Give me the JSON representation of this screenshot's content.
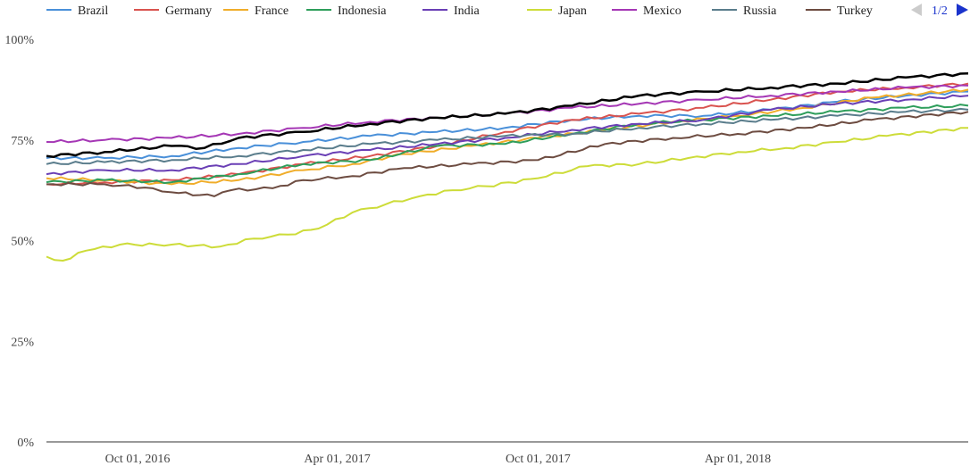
{
  "chart_data": {
    "type": "line",
    "title": "",
    "xlabel": "",
    "ylabel": "",
    "ylim": [
      0,
      100
    ],
    "y_ticks": [
      "0%",
      "25%",
      "50%",
      "75%",
      "100%"
    ],
    "x_ticks": [
      {
        "label": "Oct 01, 2016",
        "date": "2016-10-01"
      },
      {
        "label": "Apr 01, 2017",
        "date": "2017-04-01"
      },
      {
        "label": "Oct 01, 2017",
        "date": "2017-10-01"
      },
      {
        "label": "Apr 01, 2018",
        "date": "2018-04-01"
      }
    ],
    "x_range": [
      "2016-07-10",
      "2018-10-28"
    ],
    "grid": "none",
    "legend_position": "top",
    "pager": {
      "label": "1/2"
    },
    "series": [
      {
        "name": "Brazil",
        "color": "#4a90d9",
        "points": [
          [
            "2016-07-10",
            70.5
          ],
          [
            "2016-09-01",
            70.5
          ],
          [
            "2016-11-01",
            71
          ],
          [
            "2017-01-01",
            73
          ],
          [
            "2017-03-01",
            74.5
          ],
          [
            "2017-05-01",
            76
          ],
          [
            "2017-07-01",
            77
          ],
          [
            "2017-09-01",
            78
          ],
          [
            "2017-11-01",
            80
          ],
          [
            "2018-01-01",
            81
          ],
          [
            "2018-03-01",
            81
          ],
          [
            "2018-05-01",
            82.5
          ],
          [
            "2018-07-01",
            84.5
          ],
          [
            "2018-09-01",
            86
          ],
          [
            "2018-10-28",
            87
          ]
        ]
      },
      {
        "name": "Germany",
        "color": "#d9534f",
        "points": [
          [
            "2016-07-10",
            64
          ],
          [
            "2016-09-01",
            64.5
          ],
          [
            "2016-11-01",
            65
          ],
          [
            "2017-01-01",
            66.5
          ],
          [
            "2017-03-01",
            69
          ],
          [
            "2017-05-01",
            71
          ],
          [
            "2017-07-01",
            73.5
          ],
          [
            "2017-09-01",
            77
          ],
          [
            "2017-11-01",
            80
          ],
          [
            "2018-01-01",
            81.5
          ],
          [
            "2018-03-01",
            83
          ],
          [
            "2018-05-01",
            85
          ],
          [
            "2018-07-01",
            87
          ],
          [
            "2018-09-01",
            88
          ],
          [
            "2018-10-28",
            89
          ]
        ]
      },
      {
        "name": "France",
        "color": "#f0ad2a",
        "points": [
          [
            "2016-07-10",
            65.5
          ],
          [
            "2016-09-01",
            65
          ],
          [
            "2016-11-01",
            64
          ],
          [
            "2017-01-01",
            65
          ],
          [
            "2017-03-01",
            67.5
          ],
          [
            "2017-04-15",
            69
          ],
          [
            "2017-06-01",
            71.5
          ],
          [
            "2017-08-01",
            73.5
          ],
          [
            "2017-10-01",
            75.5
          ],
          [
            "2017-12-01",
            77.5
          ],
          [
            "2018-02-01",
            79.5
          ],
          [
            "2018-04-01",
            81
          ],
          [
            "2018-06-01",
            83
          ],
          [
            "2018-08-01",
            85.5
          ],
          [
            "2018-10-28",
            87.5
          ]
        ]
      },
      {
        "name": "Indonesia",
        "color": "#2e9e5b",
        "points": [
          [
            "2016-07-10",
            64.5
          ],
          [
            "2016-09-01",
            65
          ],
          [
            "2016-11-01",
            64.5
          ],
          [
            "2017-01-01",
            66.5
          ],
          [
            "2017-03-01",
            69
          ],
          [
            "2017-05-01",
            70
          ],
          [
            "2017-07-01",
            73.5
          ],
          [
            "2017-09-01",
            74
          ],
          [
            "2017-11-01",
            76.5
          ],
          [
            "2018-01-01",
            79
          ],
          [
            "2018-03-01",
            80
          ],
          [
            "2018-05-01",
            81
          ],
          [
            "2018-07-01",
            82
          ],
          [
            "2018-09-01",
            83
          ],
          [
            "2018-10-28",
            83.5
          ]
        ]
      },
      {
        "name": "India",
        "color": "#6a3fb5",
        "points": [
          [
            "2016-07-10",
            66.5
          ],
          [
            "2016-09-01",
            67.5
          ],
          [
            "2016-11-01",
            67.5
          ],
          [
            "2017-01-01",
            69
          ],
          [
            "2017-03-01",
            71
          ],
          [
            "2017-05-01",
            72.5
          ],
          [
            "2017-07-01",
            74
          ],
          [
            "2017-09-01",
            75.5
          ],
          [
            "2017-11-01",
            77.5
          ],
          [
            "2018-01-01",
            79
          ],
          [
            "2018-03-01",
            80
          ],
          [
            "2018-05-01",
            82.5
          ],
          [
            "2018-07-01",
            84
          ],
          [
            "2018-09-01",
            85
          ],
          [
            "2018-10-28",
            86
          ]
        ]
      },
      {
        "name": "Japan",
        "color": "#cddc39",
        "points": [
          [
            "2016-07-10",
            46
          ],
          [
            "2016-07-25",
            45
          ],
          [
            "2016-08-15",
            47.5
          ],
          [
            "2016-09-15",
            49
          ],
          [
            "2016-11-01",
            49
          ],
          [
            "2016-12-15",
            48.5
          ],
          [
            "2017-01-15",
            50.5
          ],
          [
            "2017-02-15",
            51.5
          ],
          [
            "2017-03-15",
            53
          ],
          [
            "2017-04-15",
            57
          ],
          [
            "2017-05-15",
            59
          ],
          [
            "2017-06-15",
            61
          ],
          [
            "2017-07-15",
            62.5
          ],
          [
            "2017-08-15",
            63.5
          ],
          [
            "2017-10-01",
            65.5
          ],
          [
            "2017-11-15",
            68.5
          ],
          [
            "2018-01-01",
            69
          ],
          [
            "2018-02-15",
            70.5
          ],
          [
            "2018-04-01",
            72
          ],
          [
            "2018-05-15",
            73
          ],
          [
            "2018-07-01",
            74.5
          ],
          [
            "2018-08-15",
            76
          ],
          [
            "2018-10-28",
            78
          ]
        ]
      },
      {
        "name": "Mexico",
        "color": "#a537b5",
        "points": [
          [
            "2016-07-10",
            74.5
          ],
          [
            "2016-09-01",
            75
          ],
          [
            "2016-11-01",
            75.5
          ],
          [
            "2017-01-01",
            76.5
          ],
          [
            "2017-03-01",
            78
          ],
          [
            "2017-05-01",
            79.5
          ],
          [
            "2017-07-01",
            80.5
          ],
          [
            "2017-09-01",
            81.5
          ],
          [
            "2017-11-01",
            83
          ],
          [
            "2018-01-01",
            84
          ],
          [
            "2018-03-01",
            85
          ],
          [
            "2018-05-01",
            86
          ],
          [
            "2018-07-01",
            87
          ],
          [
            "2018-09-01",
            88
          ],
          [
            "2018-10-28",
            88.5
          ]
        ]
      },
      {
        "name": "Russia",
        "color": "#5a7d8c",
        "points": [
          [
            "2016-07-10",
            69
          ],
          [
            "2016-09-01",
            69.5
          ],
          [
            "2016-11-01",
            70
          ],
          [
            "2017-01-01",
            71
          ],
          [
            "2017-03-01",
            72.5
          ],
          [
            "2017-05-01",
            74
          ],
          [
            "2017-07-01",
            75
          ],
          [
            "2017-09-01",
            76
          ],
          [
            "2017-11-01",
            76.5
          ],
          [
            "2018-01-01",
            78
          ],
          [
            "2018-03-01",
            79
          ],
          [
            "2018-05-01",
            80
          ],
          [
            "2018-07-01",
            81
          ],
          [
            "2018-09-01",
            82
          ],
          [
            "2018-10-28",
            82.5
          ]
        ]
      },
      {
        "name": "Turkey",
        "color": "#6d4c41",
        "points": [
          [
            "2016-07-10",
            64
          ],
          [
            "2016-09-01",
            64
          ],
          [
            "2016-10-15",
            63
          ],
          [
            "2016-11-01",
            62
          ],
          [
            "2016-12-10",
            61
          ],
          [
            "2016-12-25",
            62.5
          ],
          [
            "2017-02-01",
            63
          ],
          [
            "2017-03-01",
            65
          ],
          [
            "2017-04-15",
            66
          ],
          [
            "2017-06-01",
            68
          ],
          [
            "2017-08-01",
            69
          ],
          [
            "2017-10-01",
            70
          ],
          [
            "2017-12-01",
            74
          ],
          [
            "2018-02-01",
            75.5
          ],
          [
            "2018-04-01",
            76.5
          ],
          [
            "2018-06-01",
            78
          ],
          [
            "2018-08-01",
            80
          ],
          [
            "2018-10-28",
            82
          ]
        ]
      },
      {
        "name": "",
        "color": "#000000",
        "points": [
          [
            "2016-07-10",
            71
          ],
          [
            "2016-09-01",
            72
          ],
          [
            "2016-11-01",
            73.5
          ],
          [
            "2016-12-01",
            73
          ],
          [
            "2017-01-01",
            75.5
          ],
          [
            "2017-03-01",
            77
          ],
          [
            "2017-05-01",
            79
          ],
          [
            "2017-07-01",
            80.5
          ],
          [
            "2017-09-01",
            81.5
          ],
          [
            "2017-11-01",
            83.5
          ],
          [
            "2018-01-01",
            86
          ],
          [
            "2018-03-01",
            87
          ],
          [
            "2018-05-01",
            88
          ],
          [
            "2018-07-01",
            89
          ],
          [
            "2018-09-01",
            90.5
          ],
          [
            "2018-10-28",
            91.5
          ]
        ]
      }
    ]
  }
}
